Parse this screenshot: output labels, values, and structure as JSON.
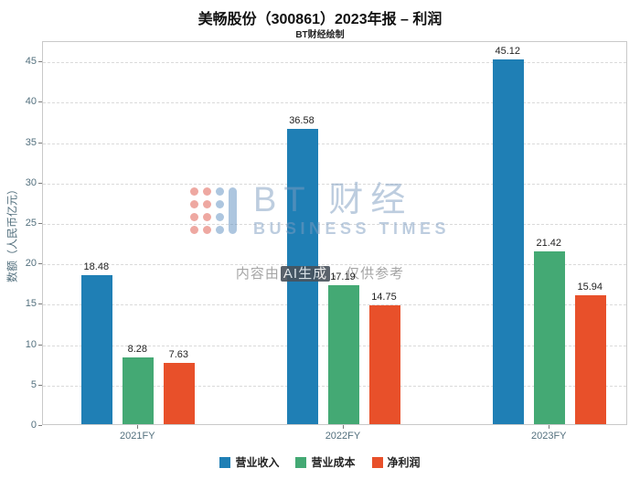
{
  "title": "美畅股份（300861）2023年报 – 利润",
  "subtitle": "BT财经绘制",
  "watermark": {
    "brand_cn": "BT 财经",
    "brand_en": "BUSINESS TIMES",
    "disclaimer_prefix": "内容由",
    "disclaimer_hl": "AI生成",
    "disclaimer_suffix": "，仅供参考"
  },
  "chart_data": {
    "type": "bar",
    "categories": [
      "2021FY",
      "2022FY",
      "2023FY"
    ],
    "series": [
      {
        "name": "营业收入",
        "color": "#1f7fb5",
        "values": [
          18.48,
          36.58,
          45.12
        ]
      },
      {
        "name": "营业成本",
        "color": "#44a974",
        "values": [
          8.28,
          17.19,
          21.42
        ]
      },
      {
        "name": "净利润",
        "color": "#e8502a",
        "values": [
          7.63,
          14.75,
          15.94
        ]
      }
    ],
    "title": "美畅股份（300861）2023年报 – 利润",
    "xlabel": "",
    "ylabel": "数额（人民币亿元）",
    "ylim": [
      0,
      47.5
    ],
    "yticks": [
      0,
      5,
      10,
      15,
      20,
      25,
      30,
      35,
      40,
      45
    ],
    "grid": true,
    "legend_position": "bottom"
  }
}
